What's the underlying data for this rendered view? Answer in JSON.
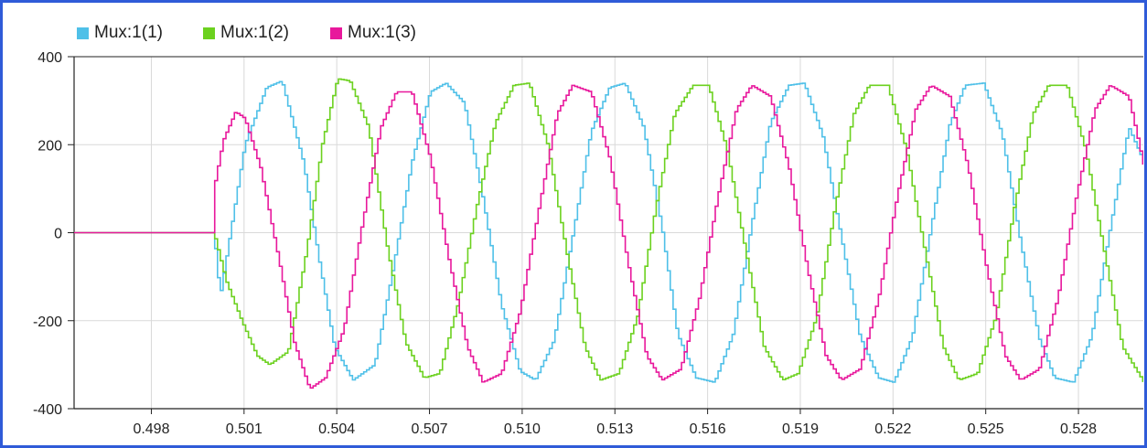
{
  "chart_data": {
    "type": "line",
    "title": "",
    "xlabel": "",
    "ylabel": "",
    "xlim": [
      0.4955,
      0.5301
    ],
    "ylim": [
      -400,
      400
    ],
    "x_ticks": [
      "0.498",
      "0.501",
      "0.504",
      "0.507",
      "0.510",
      "0.513",
      "0.516",
      "0.519",
      "0.522",
      "0.525",
      "0.528"
    ],
    "y_ticks": [
      "400",
      "200",
      "0",
      "-200",
      "-400"
    ],
    "grid": true,
    "legend_position": "top-left",
    "step_interpolation": true,
    "series": [
      {
        "name": "Mux:1(1)",
        "color": "#4fc0e8",
        "points": [
          [
            0.4955,
            0
          ],
          [
            0.5,
            0
          ],
          [
            0.5002,
            -145
          ],
          [
            0.501,
            200
          ],
          [
            0.5017,
            330
          ],
          [
            0.5022,
            345
          ],
          [
            0.5029,
            160
          ],
          [
            0.5034,
            -60
          ],
          [
            0.5039,
            -260
          ],
          [
            0.5045,
            -335
          ],
          [
            0.5052,
            -300
          ],
          [
            0.5058,
            -80
          ],
          [
            0.5064,
            160
          ],
          [
            0.507,
            320
          ],
          [
            0.5075,
            340
          ],
          [
            0.5081,
            295
          ],
          [
            0.5087,
            80
          ],
          [
            0.5093,
            -165
          ],
          [
            0.5099,
            -315
          ],
          [
            0.5104,
            -335
          ],
          [
            0.511,
            -245
          ],
          [
            0.5116,
            -10
          ],
          [
            0.5122,
            230
          ],
          [
            0.5128,
            330
          ],
          [
            0.5133,
            340
          ],
          [
            0.5139,
            240
          ],
          [
            0.5145,
            10
          ],
          [
            0.515,
            -230
          ],
          [
            0.5156,
            -330
          ],
          [
            0.5162,
            -340
          ],
          [
            0.5168,
            -230
          ],
          [
            0.5174,
            20
          ],
          [
            0.518,
            250
          ],
          [
            0.5186,
            335
          ],
          [
            0.5191,
            340
          ],
          [
            0.5197,
            220
          ],
          [
            0.5203,
            -10
          ],
          [
            0.5209,
            -235
          ],
          [
            0.5215,
            -330
          ],
          [
            0.522,
            -340
          ],
          [
            0.5226,
            -235
          ],
          [
            0.5232,
            10
          ],
          [
            0.5238,
            245
          ],
          [
            0.5243,
            335
          ],
          [
            0.5249,
            340
          ],
          [
            0.5255,
            225
          ],
          [
            0.5261,
            -20
          ],
          [
            0.5267,
            -240
          ],
          [
            0.5272,
            -330
          ],
          [
            0.5278,
            -340
          ],
          [
            0.5284,
            -235
          ],
          [
            0.529,
            10
          ],
          [
            0.5296,
            240
          ],
          [
            0.5301,
            160
          ]
        ]
      },
      {
        "name": "Mux:1(2)",
        "color": "#6cd11f",
        "points": [
          [
            0.4955,
            0
          ],
          [
            0.5,
            0
          ],
          [
            0.5004,
            -110
          ],
          [
            0.5009,
            -200
          ],
          [
            0.5014,
            -280
          ],
          [
            0.5018,
            -300
          ],
          [
            0.5024,
            -270
          ],
          [
            0.503,
            -40
          ],
          [
            0.5035,
            200
          ],
          [
            0.504,
            350
          ],
          [
            0.5044,
            345
          ],
          [
            0.505,
            240
          ],
          [
            0.5056,
            -30
          ],
          [
            0.5062,
            -250
          ],
          [
            0.5068,
            -330
          ],
          [
            0.5073,
            -320
          ],
          [
            0.5079,
            -160
          ],
          [
            0.5085,
            60
          ],
          [
            0.5091,
            250
          ],
          [
            0.5097,
            335
          ],
          [
            0.5102,
            340
          ],
          [
            0.5108,
            200
          ],
          [
            0.5114,
            -40
          ],
          [
            0.512,
            -260
          ],
          [
            0.5125,
            -335
          ],
          [
            0.5131,
            -320
          ],
          [
            0.5137,
            -190
          ],
          [
            0.5143,
            60
          ],
          [
            0.5149,
            270
          ],
          [
            0.5155,
            335
          ],
          [
            0.516,
            335
          ],
          [
            0.5166,
            190
          ],
          [
            0.5172,
            -40
          ],
          [
            0.5178,
            -260
          ],
          [
            0.5184,
            -335
          ],
          [
            0.5189,
            -320
          ],
          [
            0.5195,
            -190
          ],
          [
            0.5201,
            60
          ],
          [
            0.5207,
            270
          ],
          [
            0.5212,
            335
          ],
          [
            0.5218,
            335
          ],
          [
            0.5224,
            190
          ],
          [
            0.523,
            -40
          ],
          [
            0.5236,
            -260
          ],
          [
            0.5241,
            -335
          ],
          [
            0.5247,
            -320
          ],
          [
            0.5253,
            -190
          ],
          [
            0.5259,
            60
          ],
          [
            0.5265,
            270
          ],
          [
            0.527,
            335
          ],
          [
            0.5276,
            335
          ],
          [
            0.5282,
            190
          ],
          [
            0.5288,
            -40
          ],
          [
            0.5294,
            -260
          ],
          [
            0.5301,
            -340
          ]
        ]
      },
      {
        "name": "Mux:1(3)",
        "color": "#e8189c",
        "points": [
          [
            0.4955,
            0
          ],
          [
            0.5,
            0
          ],
          [
            0.5,
            100
          ],
          [
            0.5003,
            210
          ],
          [
            0.5007,
            275
          ],
          [
            0.501,
            260
          ],
          [
            0.5015,
            150
          ],
          [
            0.5021,
            -60
          ],
          [
            0.5026,
            -250
          ],
          [
            0.5031,
            -355
          ],
          [
            0.5036,
            -330
          ],
          [
            0.5042,
            -220
          ],
          [
            0.5048,
            20
          ],
          [
            0.5054,
            240
          ],
          [
            0.5059,
            320
          ],
          [
            0.5064,
            320
          ],
          [
            0.507,
            170
          ],
          [
            0.5076,
            -60
          ],
          [
            0.5082,
            -260
          ],
          [
            0.5087,
            -340
          ],
          [
            0.5093,
            -320
          ],
          [
            0.5099,
            -180
          ],
          [
            0.5105,
            50
          ],
          [
            0.5111,
            270
          ],
          [
            0.5116,
            335
          ],
          [
            0.5122,
            320
          ],
          [
            0.5128,
            170
          ],
          [
            0.5134,
            -70
          ],
          [
            0.514,
            -280
          ],
          [
            0.5145,
            -335
          ],
          [
            0.5151,
            -310
          ],
          [
            0.5157,
            -150
          ],
          [
            0.5163,
            80
          ],
          [
            0.5169,
            280
          ],
          [
            0.5174,
            335
          ],
          [
            0.518,
            310
          ],
          [
            0.5186,
            150
          ],
          [
            0.5192,
            -80
          ],
          [
            0.5198,
            -280
          ],
          [
            0.5203,
            -335
          ],
          [
            0.5209,
            -310
          ],
          [
            0.5215,
            -150
          ],
          [
            0.5221,
            80
          ],
          [
            0.5227,
            280
          ],
          [
            0.5232,
            335
          ],
          [
            0.5238,
            310
          ],
          [
            0.5244,
            150
          ],
          [
            0.525,
            -80
          ],
          [
            0.5256,
            -280
          ],
          [
            0.5261,
            -335
          ],
          [
            0.5267,
            -310
          ],
          [
            0.5273,
            -150
          ],
          [
            0.5279,
            80
          ],
          [
            0.5285,
            280
          ],
          [
            0.529,
            335
          ],
          [
            0.5296,
            310
          ],
          [
            0.5301,
            150
          ]
        ]
      }
    ]
  }
}
